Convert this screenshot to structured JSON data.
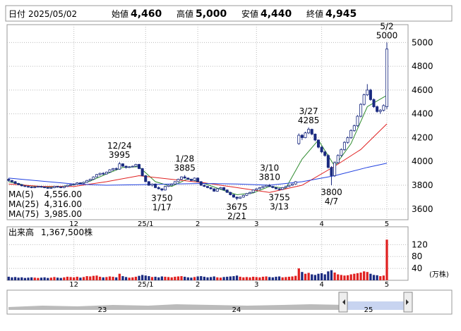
{
  "header": {
    "date_label": "日付",
    "date": "2025/05/02",
    "fields": [
      {
        "label": "始値",
        "value": "4,460",
        "color": "#000000"
      },
      {
        "label": "高値",
        "value": "5,000",
        "color": "#e00000"
      },
      {
        "label": "安値",
        "value": "4,440",
        "color": "#009000"
      },
      {
        "label": "終値",
        "value": "4,945",
        "color": "#000000"
      }
    ]
  },
  "chart_data": {
    "type": "candlestick",
    "up_color": "#ffffff",
    "down_color": "#1a2a80",
    "outline": "#1a2a80",
    "ylim": [
      3510,
      5150
    ],
    "yticks": [
      3600,
      3800,
      4000,
      4200,
      4400,
      4600,
      4800,
      5000
    ],
    "grid": true,
    "xlim": [
      -0.5,
      122.5
    ],
    "xticks": [
      {
        "value": 20,
        "label": "12"
      },
      {
        "value": 42,
        "label": "25/1"
      },
      {
        "value": 58,
        "label": "2"
      },
      {
        "value": 76,
        "label": "3"
      },
      {
        "value": 96,
        "label": "4"
      },
      {
        "value": 116,
        "label": "5"
      }
    ],
    "candles": [
      [
        3850,
        3860,
        3830,
        3840
      ],
      [
        3840,
        3845,
        3820,
        3830
      ],
      [
        3830,
        3835,
        3810,
        3815
      ],
      [
        3815,
        3820,
        3800,
        3805
      ],
      [
        3805,
        3810,
        3790,
        3795
      ],
      [
        3795,
        3800,
        3785,
        3790
      ],
      [
        3790,
        3795,
        3780,
        3785
      ],
      [
        3785,
        3790,
        3775,
        3780
      ],
      [
        3780,
        3790,
        3775,
        3785
      ],
      [
        3785,
        3795,
        3780,
        3790
      ],
      [
        3790,
        3795,
        3780,
        3785
      ],
      [
        3785,
        3790,
        3775,
        3780
      ],
      [
        3780,
        3785,
        3770,
        3775
      ],
      [
        3775,
        3785,
        3770,
        3780
      ],
      [
        3780,
        3795,
        3775,
        3790
      ],
      [
        3790,
        3795,
        3780,
        3785
      ],
      [
        3785,
        3790,
        3775,
        3780
      ],
      [
        3780,
        3795,
        3775,
        3790
      ],
      [
        3790,
        3805,
        3785,
        3800
      ],
      [
        3800,
        3810,
        3795,
        3805
      ],
      [
        3805,
        3815,
        3800,
        3810
      ],
      [
        3810,
        3825,
        3805,
        3820
      ],
      [
        3820,
        3825,
        3810,
        3815
      ],
      [
        3815,
        3830,
        3810,
        3825
      ],
      [
        3825,
        3845,
        3820,
        3840
      ],
      [
        3840,
        3855,
        3835,
        3850
      ],
      [
        3850,
        3875,
        3845,
        3870
      ],
      [
        3870,
        3895,
        3865,
        3890
      ],
      [
        3890,
        3905,
        3880,
        3900
      ],
      [
        3900,
        3910,
        3885,
        3895
      ],
      [
        3895,
        3915,
        3890,
        3910
      ],
      [
        3910,
        3935,
        3905,
        3930
      ],
      [
        3930,
        3945,
        3920,
        3940
      ],
      [
        3940,
        3950,
        3925,
        3935
      ],
      [
        3935,
        3995,
        3930,
        3980
      ],
      [
        3980,
        3985,
        3955,
        3960
      ],
      [
        3960,
        3965,
        3940,
        3950
      ],
      [
        3950,
        3960,
        3945,
        3955
      ],
      [
        3955,
        3965,
        3950,
        3960
      ],
      [
        3960,
        3980,
        3955,
        3975
      ],
      [
        3975,
        3980,
        3935,
        3940
      ],
      [
        3940,
        3945,
        3875,
        3880
      ],
      [
        3880,
        3885,
        3825,
        3830
      ],
      [
        3830,
        3835,
        3795,
        3800
      ],
      [
        3800,
        3815,
        3790,
        3810
      ],
      [
        3810,
        3815,
        3775,
        3780
      ],
      [
        3780,
        3790,
        3765,
        3770
      ],
      [
        3770,
        3775,
        3750,
        3760
      ],
      [
        3760,
        3795,
        3755,
        3790
      ],
      [
        3790,
        3805,
        3785,
        3800
      ],
      [
        3800,
        3815,
        3795,
        3810
      ],
      [
        3810,
        3835,
        3805,
        3830
      ],
      [
        3830,
        3855,
        3825,
        3850
      ],
      [
        3850,
        3875,
        3845,
        3870
      ],
      [
        3870,
        3885,
        3855,
        3860
      ],
      [
        3860,
        3865,
        3845,
        3850
      ],
      [
        3850,
        3855,
        3835,
        3840
      ],
      [
        3840,
        3865,
        3835,
        3860
      ],
      [
        3860,
        3865,
        3825,
        3830
      ],
      [
        3830,
        3835,
        3795,
        3800
      ],
      [
        3800,
        3805,
        3785,
        3790
      ],
      [
        3790,
        3795,
        3775,
        3780
      ],
      [
        3780,
        3785,
        3765,
        3770
      ],
      [
        3770,
        3775,
        3745,
        3750
      ],
      [
        3750,
        3775,
        3745,
        3770
      ],
      [
        3770,
        3785,
        3765,
        3780
      ],
      [
        3780,
        3785,
        3755,
        3760
      ],
      [
        3760,
        3765,
        3735,
        3740
      ],
      [
        3740,
        3745,
        3715,
        3720
      ],
      [
        3720,
        3725,
        3695,
        3700
      ],
      [
        3700,
        3705,
        3675,
        3690
      ],
      [
        3690,
        3705,
        3685,
        3700
      ],
      [
        3700,
        3720,
        3695,
        3715
      ],
      [
        3715,
        3735,
        3710,
        3730
      ],
      [
        3730,
        3745,
        3725,
        3740
      ],
      [
        3740,
        3765,
        3735,
        3760
      ],
      [
        3760,
        3775,
        3755,
        3770
      ],
      [
        3770,
        3785,
        3765,
        3780
      ],
      [
        3780,
        3795,
        3775,
        3790
      ],
      [
        3790,
        3805,
        3785,
        3800
      ],
      [
        3800,
        3810,
        3785,
        3790
      ],
      [
        3790,
        3795,
        3775,
        3780
      ],
      [
        3780,
        3785,
        3765,
        3770
      ],
      [
        3770,
        3775,
        3755,
        3765
      ],
      [
        3765,
        3785,
        3760,
        3780
      ],
      [
        3780,
        3795,
        3775,
        3790
      ],
      [
        3790,
        3805,
        3785,
        3800
      ],
      [
        3800,
        3815,
        3795,
        3810
      ],
      [
        3810,
        3835,
        3805,
        3830
      ],
      [
        4150,
        4235,
        4140,
        4220
      ],
      [
        4220,
        4230,
        4180,
        4200
      ],
      [
        4200,
        4250,
        4195,
        4240
      ],
      [
        4240,
        4285,
        4230,
        4270
      ],
      [
        4270,
        4275,
        4220,
        4230
      ],
      [
        4230,
        4235,
        4170,
        4180
      ],
      [
        4180,
        4185,
        4110,
        4120
      ],
      [
        4120,
        4130,
        4070,
        4080
      ],
      [
        4080,
        4090,
        4040,
        4050
      ],
      [
        4050,
        4060,
        3940,
        3950
      ],
      [
        3950,
        3960,
        3800,
        3880
      ],
      [
        3880,
        4000,
        3870,
        3990
      ],
      [
        3990,
        4060,
        3980,
        4050
      ],
      [
        4050,
        4110,
        4040,
        4100
      ],
      [
        4100,
        4170,
        4090,
        4160
      ],
      [
        4160,
        4210,
        4150,
        4200
      ],
      [
        4200,
        4270,
        4190,
        4260
      ],
      [
        4260,
        4310,
        4250,
        4300
      ],
      [
        4300,
        4390,
        4290,
        4380
      ],
      [
        4380,
        4490,
        4370,
        4480
      ],
      [
        4480,
        4570,
        4470,
        4560
      ],
      [
        4560,
        4650,
        4550,
        4600
      ],
      [
        4600,
        4610,
        4510,
        4520
      ],
      [
        4520,
        4530,
        4450,
        4460
      ],
      [
        4460,
        4470,
        4410,
        4420
      ],
      [
        4420,
        4440,
        4400,
        4430
      ],
      [
        4430,
        4480,
        4420,
        4470
      ],
      [
        4460,
        5000,
        4440,
        4945
      ]
    ],
    "ma": [
      {
        "name": "MA(5)",
        "color": "#2e8b2e",
        "current_label": "4,556.00",
        "x": [
          0,
          5,
          10,
          15,
          20,
          25,
          30,
          35,
          40,
          45,
          50,
          55,
          60,
          65,
          70,
          75,
          80,
          85,
          90,
          95,
          100,
          105,
          110,
          116
        ],
        "values": [
          3830,
          3800,
          3785,
          3785,
          3805,
          3835,
          3895,
          3950,
          3955,
          3830,
          3790,
          3855,
          3815,
          3765,
          3720,
          3735,
          3790,
          3775,
          4020,
          4180,
          3960,
          4150,
          4460,
          4556
        ]
      },
      {
        "name": "MA(25)",
        "color": "#e02020",
        "current_label": "4,316.00",
        "x": [
          0,
          10,
          20,
          30,
          40,
          50,
          60,
          70,
          80,
          90,
          100,
          108,
          116
        ],
        "values": [
          3810,
          3790,
          3790,
          3830,
          3880,
          3850,
          3820,
          3780,
          3740,
          3800,
          3960,
          4100,
          4316
        ]
      },
      {
        "name": "MA(75)",
        "color": "#2040e0",
        "current_label": "3,985.00",
        "x": [
          0,
          10,
          20,
          30,
          40,
          50,
          60,
          70,
          80,
          90,
          100,
          110,
          116
        ],
        "values": [
          3860,
          3835,
          3810,
          3800,
          3805,
          3810,
          3815,
          3810,
          3800,
          3830,
          3880,
          3950,
          3985
        ]
      }
    ],
    "annotations": [
      {
        "date": "12/24",
        "price": 3995,
        "index": 34,
        "position": "above"
      },
      {
        "date": "1/17",
        "price": 3750,
        "index": 47,
        "position": "below"
      },
      {
        "date": "1/28",
        "price": 3885,
        "index": 54,
        "position": "above"
      },
      {
        "date": "2/21",
        "price": 3675,
        "index": 70,
        "position": "below"
      },
      {
        "date": "3/10",
        "price": 3810,
        "index": 80,
        "position": "above"
      },
      {
        "date": "3/13",
        "price": 3755,
        "index": 83,
        "position": "below"
      },
      {
        "date": "3/27",
        "price": 4285,
        "index": 92,
        "position": "above"
      },
      {
        "date": "4/7",
        "price": 3800,
        "index": 99,
        "position": "below"
      },
      {
        "date": "5/2",
        "price": 5000,
        "index": 116,
        "position": "above"
      }
    ],
    "volume": {
      "title": "出来高",
      "current": "1,367,500株",
      "unit": "(万株)",
      "ylim": [
        0,
        180
      ],
      "yticks": [
        40,
        80,
        120
      ],
      "up_color": "#e02020",
      "down_color": "#1a2a80",
      "values": [
        12,
        10,
        11,
        9,
        10,
        8,
        9,
        10,
        9,
        8,
        9,
        10,
        8,
        9,
        11,
        9,
        8,
        10,
        12,
        11,
        10,
        12,
        9,
        11,
        14,
        13,
        15,
        16,
        12,
        10,
        11,
        13,
        12,
        10,
        22,
        14,
        11,
        9,
        10,
        12,
        15,
        18,
        16,
        14,
        11,
        12,
        10,
        13,
        12,
        11,
        10,
        12,
        13,
        14,
        12,
        10,
        9,
        11,
        13,
        14,
        12,
        10,
        11,
        13,
        10,
        9,
        11,
        12,
        13,
        14,
        16,
        12,
        10,
        11,
        10,
        12,
        11,
        10,
        12,
        13,
        11,
        10,
        12,
        13,
        10,
        11,
        12,
        13,
        15,
        40,
        28,
        22,
        25,
        20,
        18,
        22,
        24,
        20,
        30,
        34,
        26,
        20,
        18,
        16,
        17,
        20,
        22,
        24,
        26,
        30,
        28,
        22,
        18,
        17,
        14,
        16,
        136.75
      ]
    },
    "navigator": {
      "labels": [
        "23",
        "24",
        "25"
      ]
    }
  }
}
